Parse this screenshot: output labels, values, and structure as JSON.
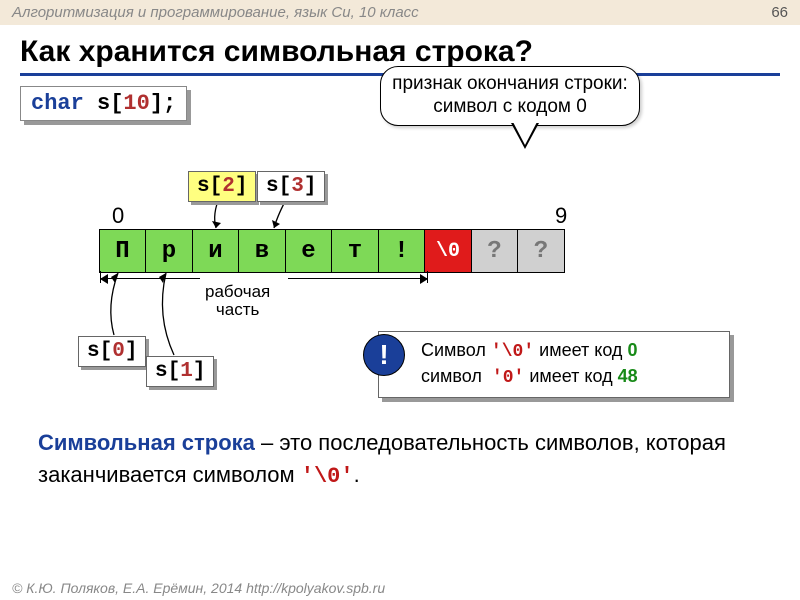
{
  "header": {
    "subject": "Алгоритмизация и программирование, язык Си, 10 класс",
    "page": "66"
  },
  "title": "Как хранится символьная строка?",
  "code": {
    "kw": "char",
    "name": " s[",
    "num": "10",
    "end": "];"
  },
  "callout": "признак окончания строки: символ с кодом 0",
  "indices": {
    "first": "0",
    "last": "9"
  },
  "cells": [
    {
      "val": "П",
      "cls": "green"
    },
    {
      "val": "р",
      "cls": "green"
    },
    {
      "val": "и",
      "cls": "green"
    },
    {
      "val": "в",
      "cls": "green"
    },
    {
      "val": "е",
      "cls": "green"
    },
    {
      "val": "т",
      "cls": "green"
    },
    {
      "val": "!",
      "cls": "green"
    },
    {
      "val": "\\0",
      "cls": "red"
    },
    {
      "val": "?",
      "cls": "gray"
    },
    {
      "val": "?",
      "cls": "gray"
    }
  ],
  "span_label": "рабочая\nчасть",
  "tags": {
    "s0": "s[0]",
    "s1": "s[1]",
    "s2": "s[2]",
    "s3": "s[3]"
  },
  "note": {
    "badge": "!",
    "l1a": "Символ ",
    "l1b": "'\\0'",
    "l1c": " имеет код ",
    "l1d": "0",
    "l2a": "символ  ",
    "l2b": "'0'",
    "l2c": " имеет код ",
    "l2d": "48"
  },
  "definition": {
    "term": "Символьная строка",
    "text": " – это последовательность символов, которая заканчивается символом ",
    "sym": "'\\0'",
    "dot": "."
  },
  "footer": "© К.Ю. Поляков, Е.А. Ерёмин, 2014     http://kpolyakov.spb.ru"
}
